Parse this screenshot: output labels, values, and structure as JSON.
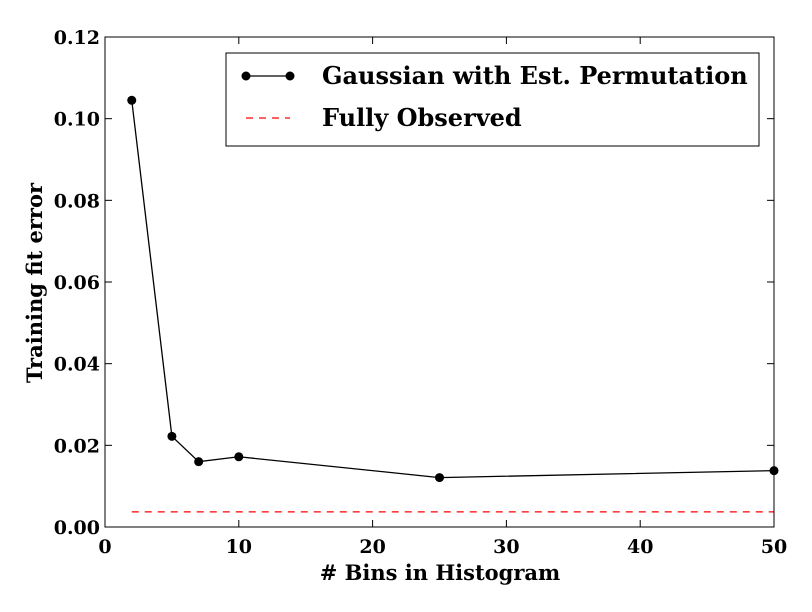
{
  "chart_data": {
    "type": "line",
    "xlabel": "# Bins in Histogram",
    "ylabel": "Training fit error",
    "xlim": [
      0,
      50
    ],
    "ylim": [
      0,
      0.12
    ],
    "xticks": [
      0,
      10,
      20,
      30,
      40,
      50
    ],
    "xtick_labels": [
      "0",
      "10",
      "20",
      "30",
      "40",
      "50"
    ],
    "yticks": [
      0,
      0.02,
      0.04,
      0.06,
      0.08,
      0.1,
      0.12
    ],
    "ytick_labels": [
      "0.00",
      "0.02",
      "0.04",
      "0.06",
      "0.08",
      "0.10",
      "0.12"
    ],
    "grid": false,
    "legend_position": "top-right",
    "series": [
      {
        "name": "Gaussian with Est. Permutation",
        "style": "line-with-markers",
        "color": "#000000",
        "x": [
          2,
          5,
          7,
          10,
          25,
          50
        ],
        "y": [
          0.1045,
          0.0222,
          0.016,
          0.0172,
          0.0121,
          0.0138
        ]
      },
      {
        "name": "Fully Observed",
        "style": "dashed",
        "color": "#ff0000",
        "x": [
          2,
          50
        ],
        "y": [
          0.0037,
          0.0037
        ]
      }
    ]
  }
}
